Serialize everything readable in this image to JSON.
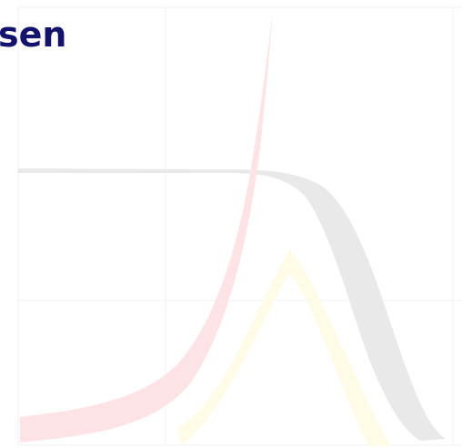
{
  "slide": {
    "title_fragment": "sen"
  },
  "decoration": {
    "icon": "graph-curves-watermark",
    "colors": {
      "title": "#13136e",
      "grid": "#f2f2f4",
      "gray_band": "#e9e9ea",
      "pink_band": "#fde3e6",
      "yellow_band": "#fffbe6"
    }
  }
}
